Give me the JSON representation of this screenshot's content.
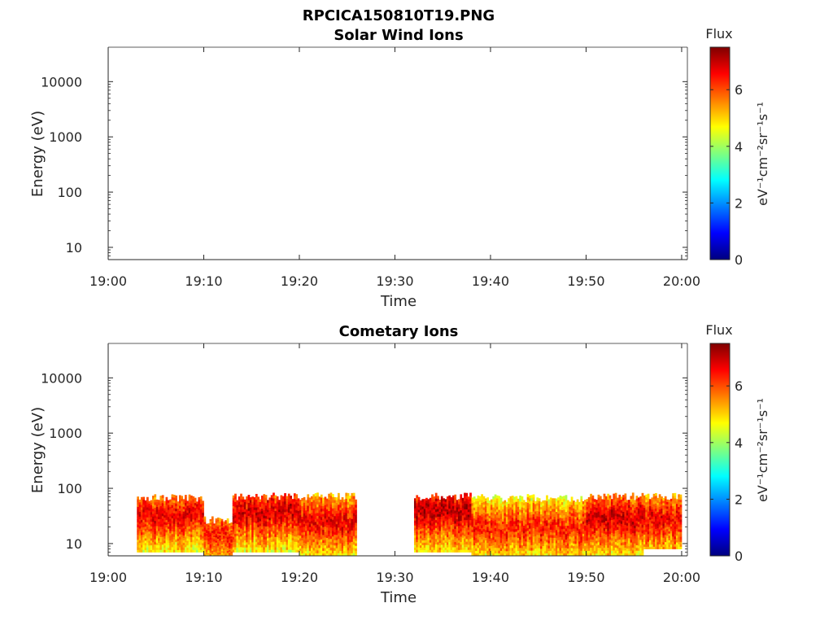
{
  "figure": {
    "title": "RPCICA150810T19.PNG"
  },
  "colormap": {
    "name": "jet",
    "stops": [
      "#00007f",
      "#0000ff",
      "#007fff",
      "#00ffff",
      "#7fff7f",
      "#ffff00",
      "#ff7f00",
      "#ff0000",
      "#7f0000"
    ]
  },
  "chart_data": [
    {
      "type": "heatmap",
      "title": "Solar Wind Ions",
      "xlabel": "Time",
      "ylabel": "Energy (eV)",
      "y_scale": "log",
      "ylim": [
        6,
        42000
      ],
      "xlim": [
        "19:00",
        "20:00"
      ],
      "x_ticks": [
        "19:00",
        "19:10",
        "19:20",
        "19:30",
        "19:40",
        "19:50",
        "20:00"
      ],
      "y_ticks": [
        {
          "value": 10,
          "label": "10"
        },
        {
          "value": 100,
          "label": "100"
        },
        {
          "value": 1000,
          "label": "1000"
        },
        {
          "value": 10000,
          "label": "10000"
        }
      ],
      "colorbar": {
        "title": "Flux",
        "label": "eV⁻¹cm⁻²sr⁻¹s⁻¹",
        "range": [
          0,
          7.5
        ],
        "ticks": [
          "0",
          "2",
          "4",
          "6"
        ]
      },
      "segments": []
    },
    {
      "type": "heatmap",
      "title": "Cometary Ions",
      "xlabel": "Time",
      "ylabel": "Energy (eV)",
      "y_scale": "log",
      "ylim": [
        6,
        42000
      ],
      "xlim": [
        "19:00",
        "20:00"
      ],
      "x_ticks": [
        "19:00",
        "19:10",
        "19:20",
        "19:30",
        "19:40",
        "19:50",
        "20:00"
      ],
      "y_ticks": [
        {
          "value": 10,
          "label": "10"
        },
        {
          "value": 100,
          "label": "100"
        },
        {
          "value": 1000,
          "label": "1000"
        },
        {
          "value": 10000,
          "label": "10000"
        }
      ],
      "colorbar": {
        "title": "Flux",
        "label": "eV⁻¹cm⁻²sr⁻¹s⁻¹",
        "range": [
          0,
          7.5
        ],
        "ticks": [
          "0",
          "2",
          "4",
          "6"
        ]
      },
      "segments": [
        {
          "t_start": "19:03",
          "t_end": "19:10",
          "e_min": 7,
          "e_max": 75,
          "peak_flux": 6.8,
          "peak_energy": 35
        },
        {
          "t_start": "19:10",
          "t_end": "19:13",
          "e_min": 6,
          "e_max": 30,
          "peak_flux": 6.5,
          "peak_energy": 14
        },
        {
          "t_start": "19:13",
          "t_end": "19:20",
          "e_min": 7,
          "e_max": 80,
          "peak_flux": 7.0,
          "peak_energy": 40
        },
        {
          "t_start": "19:20",
          "t_end": "19:26",
          "e_min": 6,
          "e_max": 80,
          "peak_flux": 6.8,
          "peak_energy": 25
        },
        {
          "t_start": "19:32",
          "t_end": "19:38",
          "e_min": 7,
          "e_max": 80,
          "peak_flux": 7.2,
          "peak_energy": 40
        },
        {
          "t_start": "19:38",
          "t_end": "19:50",
          "e_min": 6,
          "e_max": 75,
          "peak_flux": 6.5,
          "peak_energy": 20
        },
        {
          "t_start": "19:50",
          "t_end": "19:56",
          "e_min": 6,
          "e_max": 80,
          "peak_flux": 7.0,
          "peak_energy": 30
        },
        {
          "t_start": "19:56",
          "t_end": "20:00",
          "e_min": 8,
          "e_max": 80,
          "peak_flux": 6.8,
          "peak_energy": 28
        }
      ]
    }
  ]
}
